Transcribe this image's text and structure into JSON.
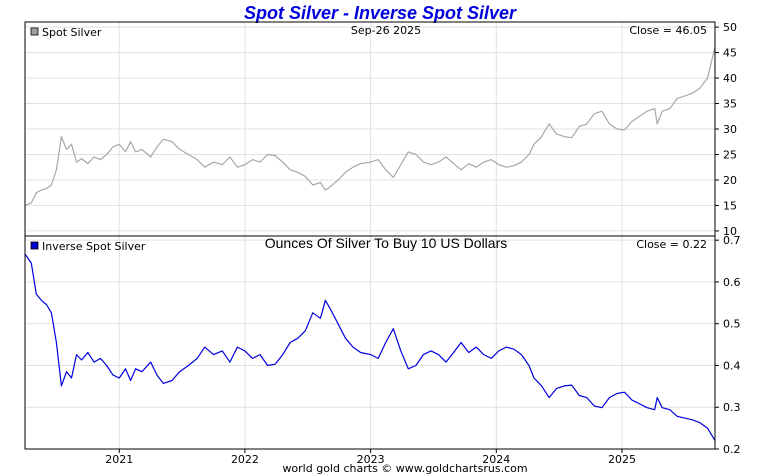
{
  "page": {
    "title": "Spot Silver - Inverse Spot Silver",
    "footer": "world gold charts © www.goldchartsrus.com",
    "colors": {
      "title": "#0000dd",
      "top_line": "#a8a8a8",
      "bottom_line": "#0000dd",
      "grid": "#e0e0e0"
    }
  },
  "chart_data": [
    {
      "type": "line",
      "title": "Spot Silver",
      "legend": "Spot Silver",
      "legend_icon": "gray-square-icon",
      "date_label": "Sep-26  2025",
      "close_label": "Close = 46.05",
      "ylim": [
        9,
        51
      ],
      "yticks": [
        10,
        15,
        20,
        25,
        30,
        35,
        40,
        45,
        50
      ],
      "xlim": [
        2020.25,
        2025.74
      ],
      "series": [
        {
          "name": "Spot Silver",
          "x": [
            2020.25,
            2020.3,
            2020.34,
            2020.38,
            2020.42,
            2020.46,
            2020.5,
            2020.54,
            2020.58,
            2020.62,
            2020.66,
            2020.7,
            2020.75,
            2020.8,
            2020.85,
            2020.9,
            2020.95,
            2021.0,
            2021.05,
            2021.09,
            2021.13,
            2021.18,
            2021.25,
            2021.3,
            2021.35,
            2021.42,
            2021.48,
            2021.55,
            2021.62,
            2021.68,
            2021.75,
            2021.82,
            2021.88,
            2021.94,
            2022.0,
            2022.06,
            2022.12,
            2022.18,
            2022.24,
            2022.3,
            2022.36,
            2022.42,
            2022.48,
            2022.54,
            2022.6,
            2022.64,
            2022.68,
            2022.74,
            2022.8,
            2022.86,
            2022.92,
            2023.0,
            2023.06,
            2023.12,
            2023.18,
            2023.24,
            2023.3,
            2023.36,
            2023.42,
            2023.48,
            2023.54,
            2023.6,
            2023.66,
            2023.72,
            2023.78,
            2023.84,
            2023.9,
            2023.96,
            2024.02,
            2024.08,
            2024.14,
            2024.2,
            2024.26,
            2024.3,
            2024.36,
            2024.42,
            2024.48,
            2024.54,
            2024.6,
            2024.66,
            2024.72,
            2024.78,
            2024.84,
            2024.9,
            2024.96,
            2025.02,
            2025.08,
            2025.14,
            2025.2,
            2025.26,
            2025.28,
            2025.32,
            2025.38,
            2025.44,
            2025.5,
            2025.56,
            2025.62,
            2025.68,
            2025.74
          ],
          "values": [
            15,
            15.5,
            17.5,
            18,
            18.3,
            19,
            22,
            28.5,
            26,
            27,
            23.5,
            24.2,
            23.2,
            24.5,
            24,
            25,
            26.5,
            27,
            25.5,
            27.5,
            25.5,
            26,
            24.5,
            26.5,
            28,
            27.5,
            26,
            25,
            24,
            22.5,
            23.5,
            23,
            24.5,
            22.5,
            23,
            24,
            23.5,
            25,
            24.8,
            23.5,
            22,
            21.5,
            20.7,
            19,
            19.5,
            18,
            18.7,
            20,
            21.5,
            22.5,
            23.2,
            23.5,
            24,
            22,
            20.5,
            23,
            25.5,
            25,
            23.5,
            23,
            23.5,
            24.5,
            23.2,
            22,
            23.2,
            22.5,
            23.5,
            24,
            23,
            22.5,
            22.8,
            23.5,
            25,
            27,
            28.5,
            31,
            29,
            28.5,
            28.3,
            30.5,
            31,
            33,
            33.5,
            31,
            30,
            29.8,
            31.5,
            32.5,
            33.5,
            34,
            31,
            33.5,
            34,
            36,
            36.5,
            37,
            38,
            40,
            46.05
          ]
        }
      ]
    },
    {
      "type": "line",
      "title": "Ounces Of Silver To Buy 10 US Dollars",
      "legend": "Inverse Spot Silver",
      "legend_icon": "blue-square-icon",
      "close_label": "Close = 0.22",
      "ylim": [
        0.2,
        0.71
      ],
      "yticks": [
        0.2,
        0.3,
        0.4,
        0.5,
        0.6,
        0.7
      ],
      "xlim": [
        2020.25,
        2025.74
      ],
      "x_tick_labels": [
        "2021",
        "2022",
        "2023",
        "2024",
        "2025"
      ],
      "x_ticks": [
        2021,
        2022,
        2023,
        2024,
        2025
      ],
      "series": [
        {
          "name": "Inverse Spot Silver",
          "x": [
            2020.25,
            2020.3,
            2020.34,
            2020.38,
            2020.42,
            2020.46,
            2020.5,
            2020.54,
            2020.58,
            2020.62,
            2020.66,
            2020.7,
            2020.75,
            2020.8,
            2020.85,
            2020.9,
            2020.95,
            2021.0,
            2021.05,
            2021.09,
            2021.13,
            2021.18,
            2021.25,
            2021.3,
            2021.35,
            2021.42,
            2021.48,
            2021.55,
            2021.62,
            2021.68,
            2021.75,
            2021.82,
            2021.88,
            2021.94,
            2022.0,
            2022.06,
            2022.12,
            2022.18,
            2022.24,
            2022.3,
            2022.36,
            2022.42,
            2022.48,
            2022.54,
            2022.6,
            2022.64,
            2022.68,
            2022.74,
            2022.8,
            2022.86,
            2022.92,
            2023.0,
            2023.06,
            2023.12,
            2023.18,
            2023.24,
            2023.3,
            2023.36,
            2023.42,
            2023.48,
            2023.54,
            2023.6,
            2023.66,
            2023.72,
            2023.78,
            2023.84,
            2023.9,
            2023.96,
            2024.02,
            2024.08,
            2024.14,
            2024.2,
            2024.26,
            2024.3,
            2024.36,
            2024.42,
            2024.48,
            2024.54,
            2024.6,
            2024.66,
            2024.72,
            2024.78,
            2024.84,
            2024.9,
            2024.96,
            2025.02,
            2025.08,
            2025.14,
            2025.2,
            2025.26,
            2025.28,
            2025.32,
            2025.38,
            2025.44,
            2025.5,
            2025.56,
            2025.62,
            2025.68,
            2025.74
          ],
          "values": [
            0.667,
            0.645,
            0.571,
            0.556,
            0.546,
            0.526,
            0.455,
            0.351,
            0.385,
            0.37,
            0.426,
            0.413,
            0.431,
            0.408,
            0.417,
            0.4,
            0.377,
            0.37,
            0.392,
            0.364,
            0.392,
            0.385,
            0.408,
            0.377,
            0.357,
            0.364,
            0.385,
            0.4,
            0.417,
            0.444,
            0.426,
            0.435,
            0.408,
            0.444,
            0.435,
            0.417,
            0.426,
            0.4,
            0.403,
            0.426,
            0.455,
            0.465,
            0.483,
            0.526,
            0.513,
            0.556,
            0.535,
            0.5,
            0.465,
            0.444,
            0.431,
            0.426,
            0.417,
            0.455,
            0.488,
            0.435,
            0.392,
            0.4,
            0.426,
            0.435,
            0.426,
            0.408,
            0.431,
            0.455,
            0.431,
            0.444,
            0.426,
            0.417,
            0.435,
            0.444,
            0.439,
            0.426,
            0.4,
            0.37,
            0.351,
            0.323,
            0.345,
            0.351,
            0.353,
            0.328,
            0.323,
            0.303,
            0.299,
            0.323,
            0.333,
            0.336,
            0.317,
            0.308,
            0.299,
            0.294,
            0.323,
            0.299,
            0.294,
            0.278,
            0.274,
            0.27,
            0.263,
            0.25,
            0.22
          ]
        }
      ]
    }
  ]
}
